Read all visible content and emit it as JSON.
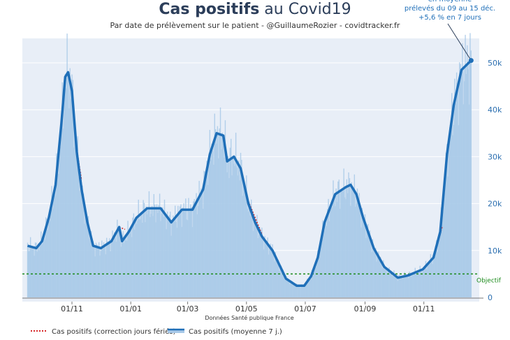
{
  "chart_data": {
    "type": "line",
    "title_bold": "Cas positifs",
    "title_rest": " au Covid19",
    "subtitle": "Par date de prélèvement sur le patient - @GuillaumeRozier - covidtracker.fr",
    "source": "Données Santé publique France",
    "x_unit": "days since 01/11/2020",
    "xlim": [
      -47,
      416
    ],
    "ylim": [
      0,
      55000
    ],
    "x_ticks": [
      {
        "day": 0,
        "label": "01/11"
      },
      {
        "day": 61,
        "label": "01/01"
      },
      {
        "day": 120,
        "label": "01/03"
      },
      {
        "day": 181,
        "label": "01/05"
      },
      {
        "day": 242,
        "label": "01/07"
      },
      {
        "day": 304,
        "label": "01/09"
      },
      {
        "day": 365,
        "label": "01/11"
      }
    ],
    "y_ticks": [
      {
        "value": 0,
        "label": "0"
      },
      {
        "value": 10000,
        "label": "10k"
      },
      {
        "value": 20000,
        "label": "20k"
      },
      {
        "value": 30000,
        "label": "30k"
      },
      {
        "value": 40000,
        "label": "40k"
      },
      {
        "value": 50000,
        "label": "50k"
      }
    ],
    "objective": {
      "value": 5000,
      "label": "Objectif",
      "color": "#1a8a1a"
    },
    "series": [
      {
        "name": "Cas positifs (moyenne 7 j.)",
        "color": "#1f6fb8",
        "fill": "#a8c9e8",
        "x": [
          -46,
          -37,
          -31,
          -24,
          -17,
          -11,
          -7,
          -4,
          0,
          5,
          10,
          16,
          22,
          30,
          41,
          49,
          52,
          59,
          67,
          78,
          92,
          103,
          114,
          125,
          136,
          143,
          150,
          157,
          161,
          168,
          175,
          183,
          190,
          197,
          208,
          215,
          222,
          233,
          241,
          248,
          255,
          262,
          273,
          284,
          289,
          295,
          302,
          313,
          324,
          338,
          349,
          364,
          375,
          382,
          389,
          396,
          404,
          414
        ],
        "y": [
          11000,
          10500,
          12000,
          17000,
          24000,
          37000,
          47000,
          48000,
          44000,
          31000,
          23000,
          16000,
          11000,
          10500,
          12000,
          15000,
          12000,
          14000,
          17000,
          19000,
          19000,
          16000,
          18700,
          18700,
          23000,
          30500,
          35000,
          34500,
          29000,
          30000,
          27500,
          20000,
          16000,
          13000,
          10000,
          7000,
          4000,
          2500,
          2500,
          4500,
          8500,
          16000,
          22000,
          23500,
          24000,
          22000,
          17000,
          10500,
          6500,
          4200,
          4700,
          6000,
          8500,
          14000,
          30500,
          41000,
          48500,
          50500
        ]
      },
      {
        "name": "Cas positifs (correction jours fériés)",
        "color": "#d62728",
        "segments": [
          {
            "x": [
              5,
              10
            ],
            "y": [
              31500,
              25000
            ]
          },
          {
            "x": [
              49,
              55
            ],
            "y": [
              15000,
              14500
            ]
          },
          {
            "x": [
              183,
              197
            ],
            "y": [
              20500,
              13500
            ]
          },
          {
            "x": [
              375,
              384
            ],
            "y": [
              9000,
              15000
            ]
          }
        ]
      }
    ],
    "annotation": {
      "lines": [
        "en moyenne",
        "prélevés du 09 au 15 déc.",
        "+5,6 % en 7 jours"
      ],
      "day": 414,
      "value": 50500
    },
    "legend": {
      "position": "bottom-left",
      "items": [
        "Cas positifs (correction jours fériés)",
        "Cas positifs (moyenne 7 j.)"
      ]
    }
  }
}
